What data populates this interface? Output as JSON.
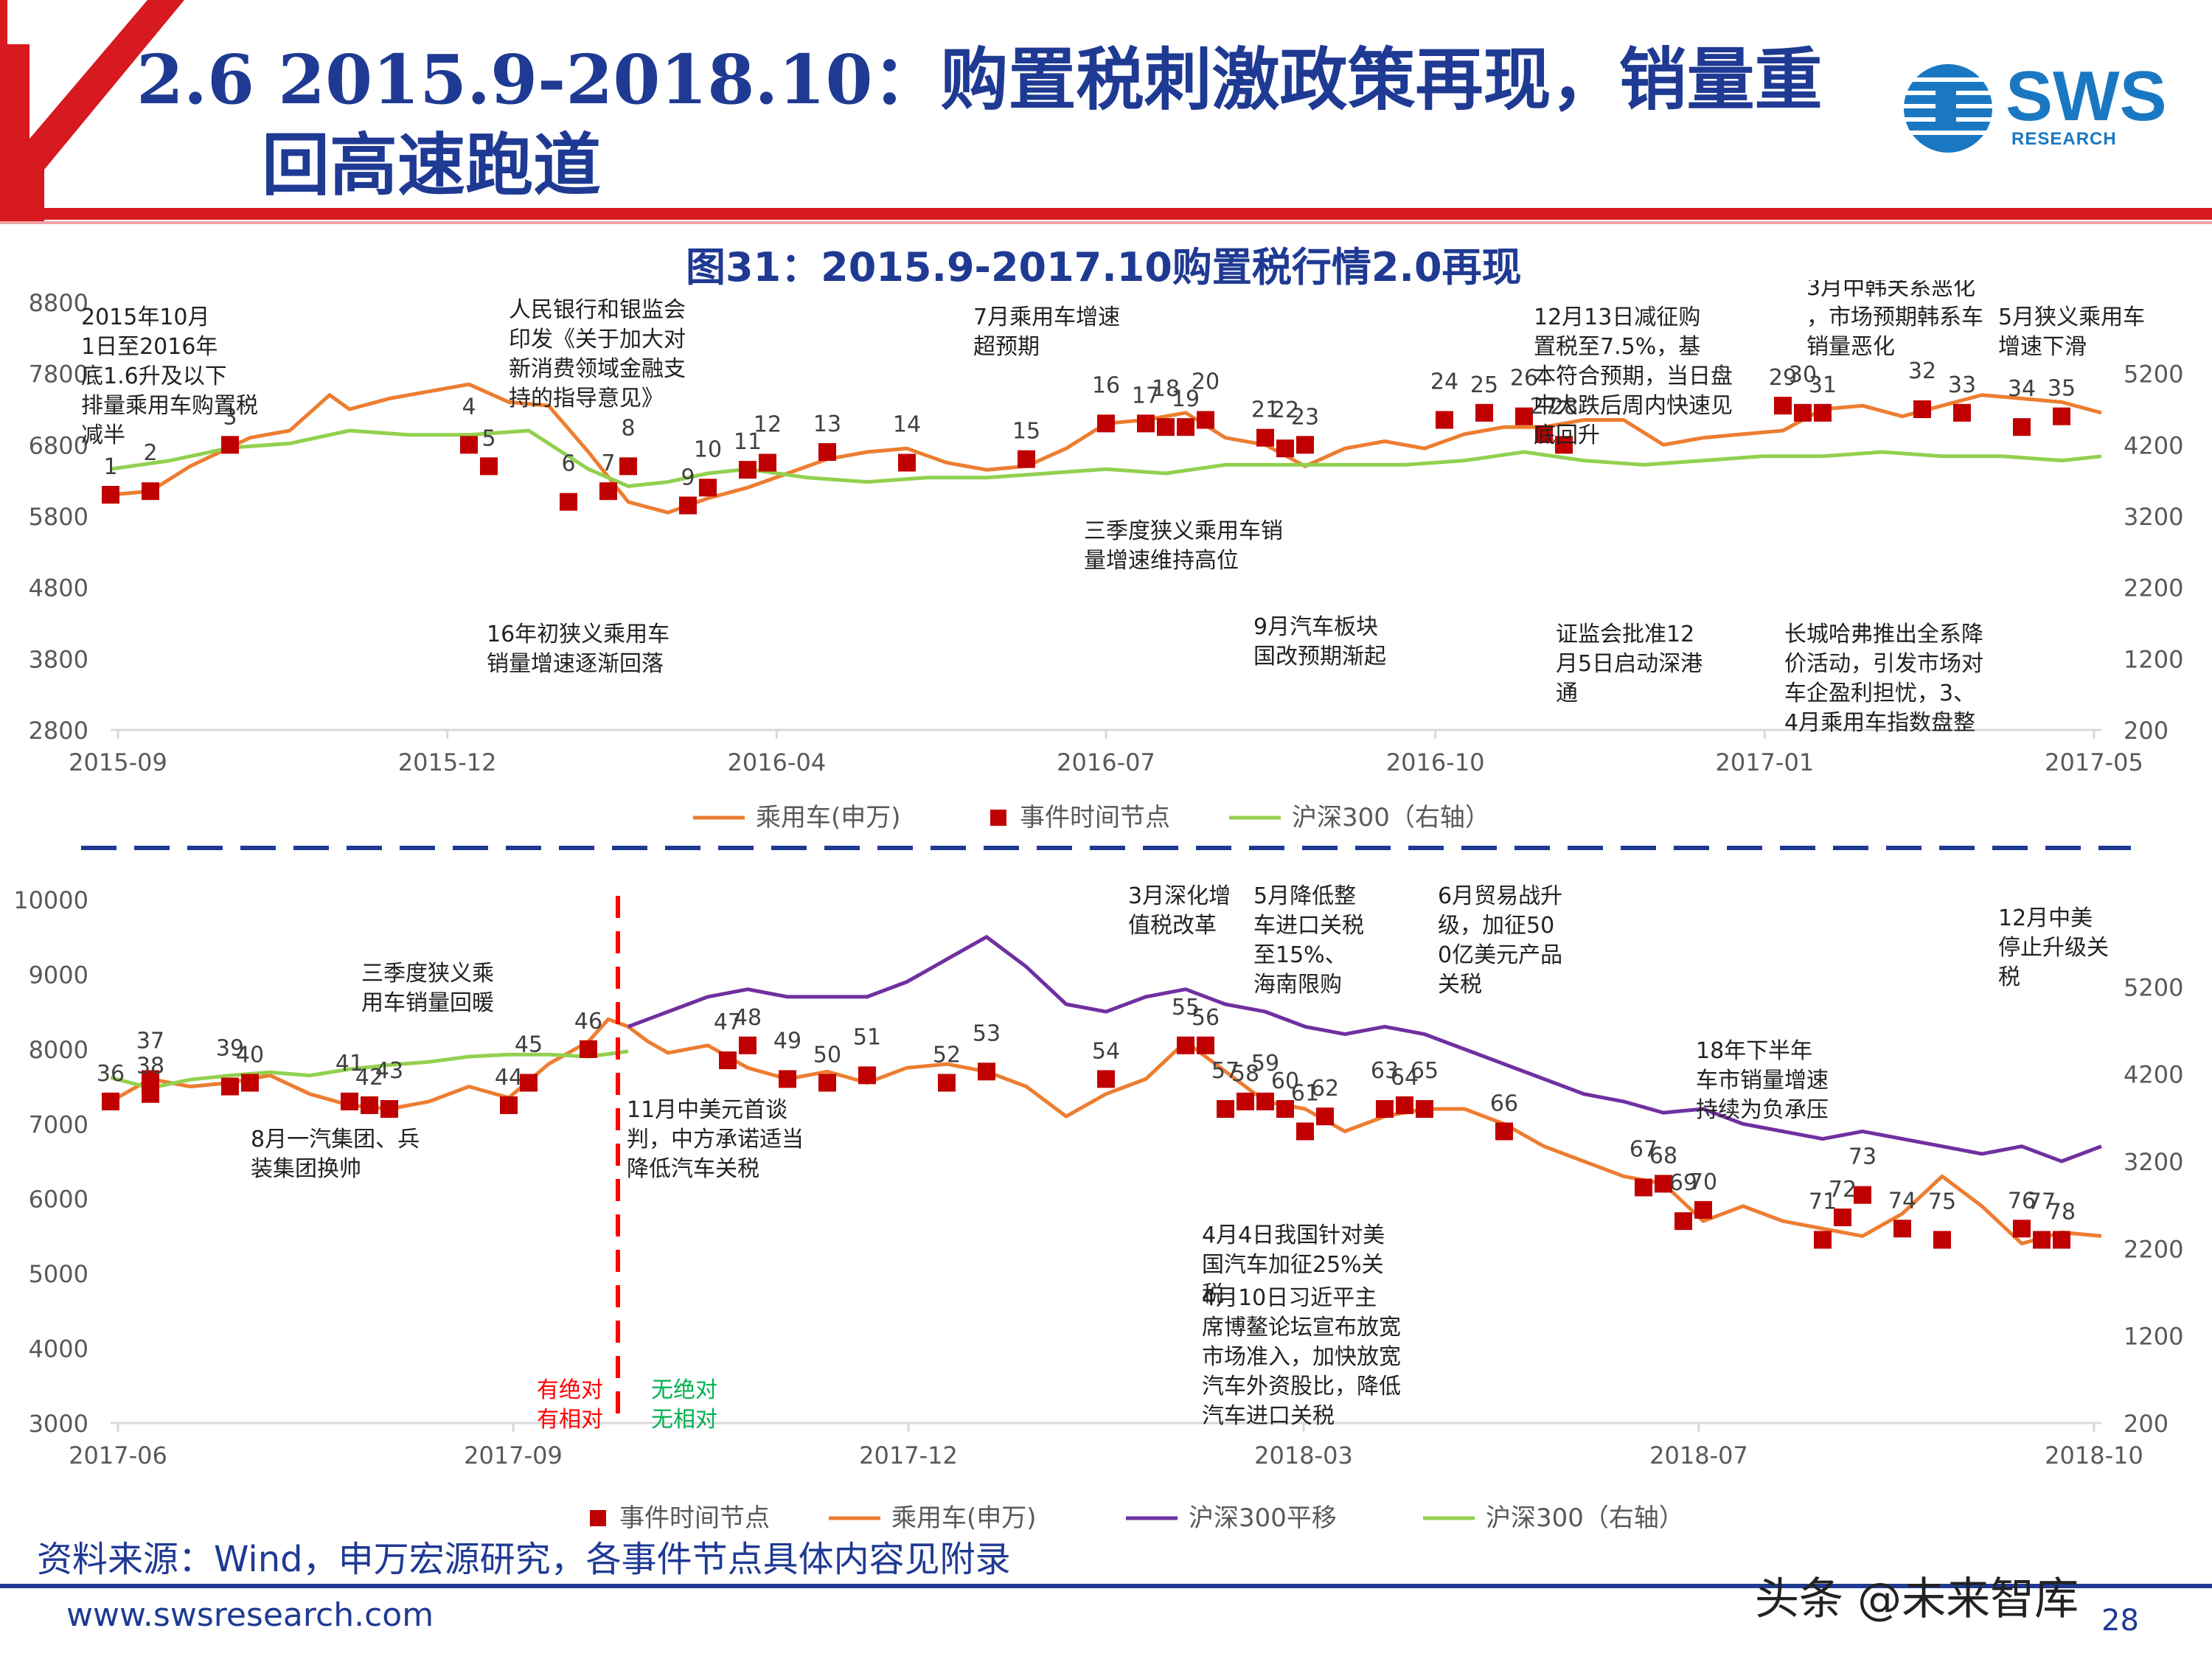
{
  "header": {
    "title_line1": "2.6 2015.9-2018.10：购置税刺激政策再现，销量重",
    "title_line2": "回高速跑道",
    "logo_text": "SWS",
    "logo_sub": "RESEARCH",
    "accent_red": "#d71920",
    "accent_blue": "#1f3a93"
  },
  "figure_title": "图31：2015.9-2017.10购置税行情2.0再现",
  "footer": {
    "source": "资料来源：Wind，申万宏源研究，各事件节点具体内容见附录",
    "url": "www.swsresearch.com",
    "watermark": "头条 @未来智库",
    "page": "28"
  },
  "chart_data": [
    {
      "type": "line",
      "x_ticks": [
        "2015-09",
        "2015-12",
        "2016-04",
        "2016-07",
        "2016-10",
        "2017-01",
        "2017-05"
      ],
      "y_left": {
        "ticks": [
          "8800",
          "7800",
          "6800",
          "5800",
          "4800",
          "3800",
          "2800"
        ],
        "min": 2800,
        "max": 8800
      },
      "y_right": {
        "ticks": [
          "5200",
          "4200",
          "3200",
          "2200",
          "1200",
          "200"
        ],
        "min": 200,
        "max": 5200
      },
      "legend": [
        "乘用车(申万)",
        "事件时间节点",
        "沪深300（右轴）"
      ],
      "colors": {
        "passenger": "#ed7d31",
        "hs300": "#92d050",
        "event": "#c00000"
      },
      "series": [
        {
          "name": "乘用车(申万)",
          "axis": "left",
          "x": [
            0.0,
            0.02,
            0.04,
            0.07,
            0.09,
            0.11,
            0.12,
            0.14,
            0.16,
            0.18,
            0.2,
            0.22,
            0.24,
            0.26,
            0.28,
            0.3,
            0.32,
            0.34,
            0.36,
            0.38,
            0.4,
            0.42,
            0.44,
            0.46,
            0.48,
            0.5,
            0.52,
            0.54,
            0.56,
            0.58,
            0.6,
            0.62,
            0.64,
            0.66,
            0.68,
            0.7,
            0.72,
            0.74,
            0.76,
            0.78,
            0.8,
            0.82,
            0.84,
            0.86,
            0.88,
            0.9,
            0.92,
            0.94,
            0.96,
            0.98,
            1.0
          ],
          "y": [
            6100,
            6150,
            6500,
            6900,
            7000,
            7500,
            7300,
            7450,
            7550,
            7650,
            7400,
            7350,
            6700,
            6000,
            5850,
            6050,
            6200,
            6400,
            6600,
            6700,
            6750,
            6550,
            6450,
            6500,
            6750,
            7100,
            7150,
            7250,
            6900,
            6800,
            6500,
            6750,
            6850,
            6750,
            6950,
            7050,
            7050,
            7150,
            7150,
            6800,
            6900,
            6950,
            7000,
            7300,
            7350,
            7200,
            7350,
            7500,
            7450,
            7400,
            7250
          ]
        },
        {
          "name": "沪深300（右轴）",
          "axis": "right",
          "x": [
            0.0,
            0.03,
            0.06,
            0.09,
            0.12,
            0.15,
            0.18,
            0.21,
            0.24,
            0.26,
            0.28,
            0.3,
            0.32,
            0.35,
            0.38,
            0.41,
            0.44,
            0.47,
            0.5,
            0.53,
            0.56,
            0.59,
            0.62,
            0.65,
            0.68,
            0.71,
            0.74,
            0.77,
            0.8,
            0.83,
            0.86,
            0.89,
            0.92,
            0.95,
            0.98,
            1.0
          ],
          "y": [
            3250,
            3350,
            3500,
            3550,
            3700,
            3650,
            3650,
            3700,
            3250,
            3050,
            3100,
            3200,
            3250,
            3150,
            3100,
            3150,
            3150,
            3200,
            3250,
            3200,
            3300,
            3300,
            3300,
            3300,
            3350,
            3450,
            3350,
            3300,
            3350,
            3400,
            3400,
            3450,
            3400,
            3400,
            3350,
            3400
          ]
        }
      ],
      "events": [
        {
          "label": "1",
          "x": 0.0,
          "y": 6100
        },
        {
          "label": "2",
          "x": 0.02,
          "y": 6150
        },
        {
          "label": "3",
          "x": 0.06,
          "y": 6800
        },
        {
          "label": "4",
          "x": 0.18,
          "y": 6800
        },
        {
          "label": "5",
          "x": 0.19,
          "y": 6500
        },
        {
          "label": "6",
          "x": 0.23,
          "y": 6000
        },
        {
          "label": "7",
          "x": 0.25,
          "y": 6150
        },
        {
          "label": "8",
          "x": 0.26,
          "y": 6500
        },
        {
          "label": "9",
          "x": 0.29,
          "y": 5950
        },
        {
          "label": "10",
          "x": 0.3,
          "y": 6200
        },
        {
          "label": "11",
          "x": 0.32,
          "y": 6450
        },
        {
          "label": "12",
          "x": 0.33,
          "y": 6550
        },
        {
          "label": "13",
          "x": 0.36,
          "y": 6700
        },
        {
          "label": "14",
          "x": 0.4,
          "y": 6550
        },
        {
          "label": "15",
          "x": 0.46,
          "y": 6600
        },
        {
          "label": "16",
          "x": 0.5,
          "y": 7100
        },
        {
          "label": "17",
          "x": 0.52,
          "y": 7100
        },
        {
          "label": "18",
          "x": 0.53,
          "y": 7050
        },
        {
          "label": "19",
          "x": 0.54,
          "y": 7050
        },
        {
          "label": "20",
          "x": 0.55,
          "y": 7150
        },
        {
          "label": "21",
          "x": 0.58,
          "y": 6900
        },
        {
          "label": "22",
          "x": 0.59,
          "y": 6750
        },
        {
          "label": "23",
          "x": 0.6,
          "y": 6800
        },
        {
          "label": "24",
          "x": 0.67,
          "y": 7150
        },
        {
          "label": "25",
          "x": 0.69,
          "y": 7250
        },
        {
          "label": "26",
          "x": 0.71,
          "y": 7200
        },
        {
          "label": "27",
          "x": 0.72,
          "y": 6950
        },
        {
          "label": "28",
          "x": 0.73,
          "y": 6800
        },
        {
          "label": "29",
          "x": 0.84,
          "y": 7350
        },
        {
          "label": "30",
          "x": 0.85,
          "y": 7250
        },
        {
          "label": "31",
          "x": 0.86,
          "y": 7250
        },
        {
          "label": "32",
          "x": 0.91,
          "y": 7300
        },
        {
          "label": "33",
          "x": 0.93,
          "y": 7250
        },
        {
          "label": "34",
          "x": 0.96,
          "y": 7050
        },
        {
          "label": "35",
          "x": 0.98,
          "y": 7200
        }
      ],
      "annotations": [
        "2015年10月1日至2016年底1.6升及以下排量乘用车购置税减半",
        "人民银行和银监会印发《关于加大对新消费领域金融支持的指导意见》",
        "7月乘用车增速超预期",
        "12月13日减征购置税至7.5%，基本符合预期，当日盘中大跌后周内快速见底回升",
        "3月中韩关系恶化，市场预期韩系车销量恶化",
        "5月狭义乘用车增速下滑",
        "三季度狭义乘用车销量增速维持高位",
        "16年初狭义乘用车销量增速逐渐回落",
        "9月汽车板块国改预期渐起",
        "证监会批准12月5日启动深港通",
        "长城哈弗推出全系降价活动，引发市场对车企盈利担忧，3、4月乘用车指数盘整"
      ]
    },
    {
      "type": "line",
      "x_ticks": [
        "2017-06",
        "2017-09",
        "2017-12",
        "2018-03",
        "2018-07",
        "2018-10"
      ],
      "y_left": {
        "ticks": [
          "10000",
          "9000",
          "8000",
          "7000",
          "6000",
          "5000",
          "4000",
          "3000"
        ],
        "min": 3000,
        "max": 10000
      },
      "y_right": {
        "ticks": [
          "5200",
          "4200",
          "3200",
          "2200",
          "1200",
          "200"
        ],
        "min": 200,
        "max": 5200
      },
      "legend": [
        "事件时间节点",
        "乘用车(申万)",
        "沪深300平移",
        "沪深300（右轴）"
      ],
      "colors": {
        "passenger": "#ed7d31",
        "hs300_shift": "#7030a0",
        "hs300": "#92d050",
        "event": "#c00000",
        "divider": "#ff0000"
      },
      "divider_labels": {
        "left": [
          "有绝对",
          "有相对"
        ],
        "right": [
          "无绝对",
          "无相对"
        ]
      },
      "series": [
        {
          "name": "乘用车(申万)",
          "axis": "left",
          "x": [
            0.0,
            0.02,
            0.04,
            0.06,
            0.08,
            0.1,
            0.12,
            0.14,
            0.16,
            0.18,
            0.2,
            0.22,
            0.24,
            0.25,
            0.26,
            0.27,
            0.28,
            0.3,
            0.32,
            0.34,
            0.36,
            0.38,
            0.4,
            0.42,
            0.44,
            0.46,
            0.48,
            0.5,
            0.52,
            0.54,
            0.56,
            0.58,
            0.6,
            0.62,
            0.64,
            0.66,
            0.68,
            0.7,
            0.72,
            0.74,
            0.76,
            0.78,
            0.8,
            0.82,
            0.84,
            0.86,
            0.88,
            0.9,
            0.92,
            0.94,
            0.96,
            0.98,
            1.0
          ],
          "y": [
            7300,
            7600,
            7500,
            7550,
            7650,
            7400,
            7250,
            7200,
            7300,
            7500,
            7350,
            7800,
            8100,
            8400,
            8300,
            8100,
            7950,
            8050,
            7750,
            7600,
            7700,
            7550,
            7750,
            7800,
            7700,
            7500,
            7100,
            7400,
            7600,
            8100,
            7700,
            7300,
            7200,
            6900,
            7100,
            7200,
            7200,
            7000,
            6700,
            6500,
            6300,
            6200,
            5700,
            5900,
            5700,
            5600,
            5500,
            5800,
            6300,
            5900,
            5400,
            5550,
            5500
          ]
        },
        {
          "name": "沪深300平移",
          "axis": "left",
          "x": [
            0.26,
            0.28,
            0.3,
            0.32,
            0.34,
            0.36,
            0.38,
            0.4,
            0.42,
            0.44,
            0.46,
            0.48,
            0.5,
            0.52,
            0.54,
            0.56,
            0.58,
            0.6,
            0.62,
            0.64,
            0.66,
            0.68,
            0.7,
            0.72,
            0.74,
            0.76,
            0.78,
            0.8,
            0.82,
            0.84,
            0.86,
            0.88,
            0.9,
            0.92,
            0.94,
            0.96,
            0.98,
            1.0
          ],
          "y": [
            8300,
            8500,
            8700,
            8800,
            8700,
            8700,
            8700,
            8900,
            9200,
            9500,
            9100,
            8600,
            8500,
            8700,
            8800,
            8600,
            8500,
            8300,
            8200,
            8300,
            8200,
            8000,
            7800,
            7600,
            7400,
            7300,
            7150,
            7200,
            7000,
            6900,
            6800,
            6900,
            6800,
            6700,
            6600,
            6700,
            6500,
            6700
          ]
        },
        {
          "name": "沪深300（右轴）",
          "axis": "right",
          "x": [
            0.0,
            0.02,
            0.04,
            0.06,
            0.08,
            0.1,
            0.12,
            0.14,
            0.16,
            0.18,
            0.2,
            0.22,
            0.24,
            0.26
          ],
          "y": [
            3500,
            3400,
            3480,
            3520,
            3550,
            3520,
            3580,
            3620,
            3650,
            3700,
            3720,
            3720,
            3700,
            3750
          ]
        }
      ],
      "events": [
        {
          "label": "36",
          "x": 0.0,
          "y": 7300
        },
        {
          "label": "37",
          "x": 0.02,
          "y": 7600
        },
        {
          "label": "38",
          "x": 0.02,
          "y": 7400
        },
        {
          "label": "39",
          "x": 0.06,
          "y": 7500
        },
        {
          "label": "40",
          "x": 0.07,
          "y": 7550
        },
        {
          "label": "41",
          "x": 0.12,
          "y": 7300
        },
        {
          "label": "42",
          "x": 0.13,
          "y": 7250
        },
        {
          "label": "43",
          "x": 0.14,
          "y": 7200
        },
        {
          "label": "44",
          "x": 0.2,
          "y": 7250
        },
        {
          "label": "45",
          "x": 0.21,
          "y": 7550
        },
        {
          "label": "46",
          "x": 0.24,
          "y": 8000
        },
        {
          "label": "47",
          "x": 0.31,
          "y": 7850
        },
        {
          "label": "48",
          "x": 0.32,
          "y": 8050
        },
        {
          "label": "49",
          "x": 0.34,
          "y": 7600
        },
        {
          "label": "50",
          "x": 0.36,
          "y": 7550
        },
        {
          "label": "51",
          "x": 0.38,
          "y": 7650
        },
        {
          "label": "52",
          "x": 0.42,
          "y": 7550
        },
        {
          "label": "53",
          "x": 0.44,
          "y": 7700
        },
        {
          "label": "54",
          "x": 0.5,
          "y": 7600
        },
        {
          "label": "55",
          "x": 0.54,
          "y": 8050
        },
        {
          "label": "56",
          "x": 0.55,
          "y": 8050
        },
        {
          "label": "57",
          "x": 0.56,
          "y": 7200
        },
        {
          "label": "58",
          "x": 0.57,
          "y": 7300
        },
        {
          "label": "59",
          "x": 0.58,
          "y": 7300
        },
        {
          "label": "60",
          "x": 0.59,
          "y": 7200
        },
        {
          "label": "61",
          "x": 0.6,
          "y": 6900
        },
        {
          "label": "62",
          "x": 0.61,
          "y": 7100
        },
        {
          "label": "63",
          "x": 0.64,
          "y": 7200
        },
        {
          "label": "64",
          "x": 0.65,
          "y": 7250
        },
        {
          "label": "65",
          "x": 0.66,
          "y": 7200
        },
        {
          "label": "66",
          "x": 0.7,
          "y": 6900
        },
        {
          "label": "67",
          "x": 0.77,
          "y": 6150
        },
        {
          "label": "68",
          "x": 0.78,
          "y": 6200
        },
        {
          "label": "69",
          "x": 0.79,
          "y": 5700
        },
        {
          "label": "70",
          "x": 0.8,
          "y": 5850
        },
        {
          "label": "71",
          "x": 0.86,
          "y": 5450
        },
        {
          "label": "72",
          "x": 0.87,
          "y": 5750
        },
        {
          "label": "73",
          "x": 0.88,
          "y": 6050
        },
        {
          "label": "74",
          "x": 0.9,
          "y": 5600
        },
        {
          "label": "75",
          "x": 0.92,
          "y": 5450
        },
        {
          "label": "76",
          "x": 0.96,
          "y": 5600
        },
        {
          "label": "77",
          "x": 0.97,
          "y": 5450
        },
        {
          "label": "78",
          "x": 0.98,
          "y": 5450
        }
      ],
      "annotations": [
        "三季度狭义乘用车销量回暖",
        "8月一汽集团、兵装集团换帅",
        "11月中美元首谈判，中方承诺适当降低汽车关税",
        "3月深化增值税改革",
        "5月降低整车进口关税至15%、海南限购",
        "6月贸易战升级，加征500亿美元产品关税",
        "4月4日我国针对美国汽车加征25%关税",
        "4月10日习近平主席博鳌论坛宣布放宽市场准入，加快放宽汽车外资股比，降低汽车进口关税",
        "18年下半年车市销量增速持续为负承压",
        "12月中美停止升级关税"
      ]
    }
  ]
}
